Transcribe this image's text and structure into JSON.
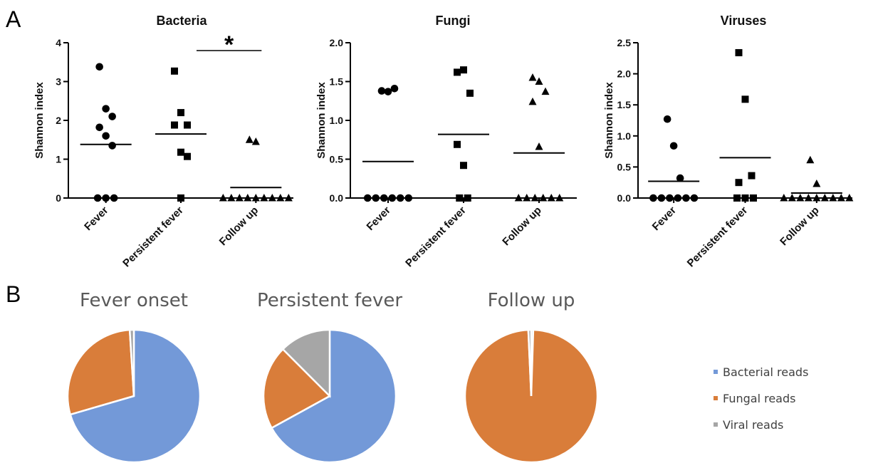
{
  "panel_labels": {
    "a": "A",
    "b": "B"
  },
  "chart_data": [
    {
      "type": "scatter",
      "title": "Bacteria",
      "ylabel": "Shannon index",
      "categories": [
        "Fever",
        "Persistent fever",
        "Follow up"
      ],
      "ylim": [
        0,
        4
      ],
      "yticks": [
        "0",
        "1",
        "2",
        "3",
        "4"
      ],
      "markers": [
        "circle",
        "square",
        "triangle"
      ],
      "points": [
        [
          3.38,
          2.3,
          2.1,
          1.82,
          1.6,
          1.35,
          0,
          0,
          0
        ],
        [
          3.27,
          2.2,
          1.88,
          1.88,
          1.18,
          1.07,
          0
        ],
        [
          1.5,
          1.45,
          0,
          0,
          0,
          0,
          0,
          0,
          0,
          0,
          0
        ]
      ],
      "means": [
        1.38,
        1.65,
        0.27
      ],
      "significance": {
        "between": [
          1,
          2
        ],
        "label": "*"
      }
    },
    {
      "type": "scatter",
      "title": "Fungi",
      "ylabel": "Shannon index",
      "categories": [
        "Fever",
        "Persistent fever",
        "Follow up"
      ],
      "ylim": [
        0,
        2
      ],
      "yticks": [
        "0.0",
        "0.5",
        "1.0",
        "1.5",
        "2.0"
      ],
      "markers": [
        "circle",
        "square",
        "triangle"
      ],
      "points": [
        [
          1.38,
          1.37,
          1.41,
          0,
          0,
          0,
          0,
          0,
          0
        ],
        [
          1.62,
          1.65,
          1.35,
          0.69,
          0.42,
          0,
          0
        ],
        [
          1.55,
          1.5,
          1.37,
          1.24,
          0.66,
          0,
          0,
          0,
          0,
          0,
          0
        ]
      ],
      "means": [
        0.47,
        0.82,
        0.58
      ]
    },
    {
      "type": "scatter",
      "title": "Viruses",
      "ylabel": "Shannon index",
      "categories": [
        "Fever",
        "Persistent fever",
        "Follow up"
      ],
      "ylim": [
        0,
        2.5
      ],
      "yticks": [
        "0.0",
        "0.5",
        "1.0",
        "1.5",
        "2.0",
        "2.5"
      ],
      "markers": [
        "circle",
        "square",
        "triangle"
      ],
      "points": [
        [
          1.27,
          0.84,
          0.32,
          0,
          0,
          0,
          0,
          0,
          0
        ],
        [
          2.34,
          1.59,
          0.36,
          0.25,
          0,
          0,
          0
        ],
        [
          0.61,
          0.23,
          0,
          0,
          0,
          0,
          0,
          0,
          0,
          0,
          0
        ]
      ],
      "means": [
        0.27,
        0.65,
        0.08
      ]
    },
    {
      "type": "pie",
      "title": "Fever onset",
      "categories": [
        "Bacterial reads",
        "Fungal reads",
        "Viral reads"
      ],
      "values": [
        70.5,
        28.5,
        1.0
      ]
    },
    {
      "type": "pie",
      "title": "Persistent fever",
      "categories": [
        "Bacterial reads",
        "Fungal reads",
        "Viral reads"
      ],
      "values": [
        67.0,
        20.5,
        12.5
      ]
    },
    {
      "type": "pie",
      "title": "Follow up",
      "categories": [
        "Bacterial reads",
        "Fungal reads",
        "Viral reads"
      ],
      "values": [
        0.5,
        98.8,
        0.7
      ]
    }
  ],
  "legend": {
    "placement": "right",
    "items": [
      {
        "label": "Bacterial reads",
        "color": "#7399d8"
      },
      {
        "label": "Fungal reads",
        "color": "#d97d3a"
      },
      {
        "label": "Viral reads",
        "color": "#a6a6a6"
      }
    ]
  }
}
